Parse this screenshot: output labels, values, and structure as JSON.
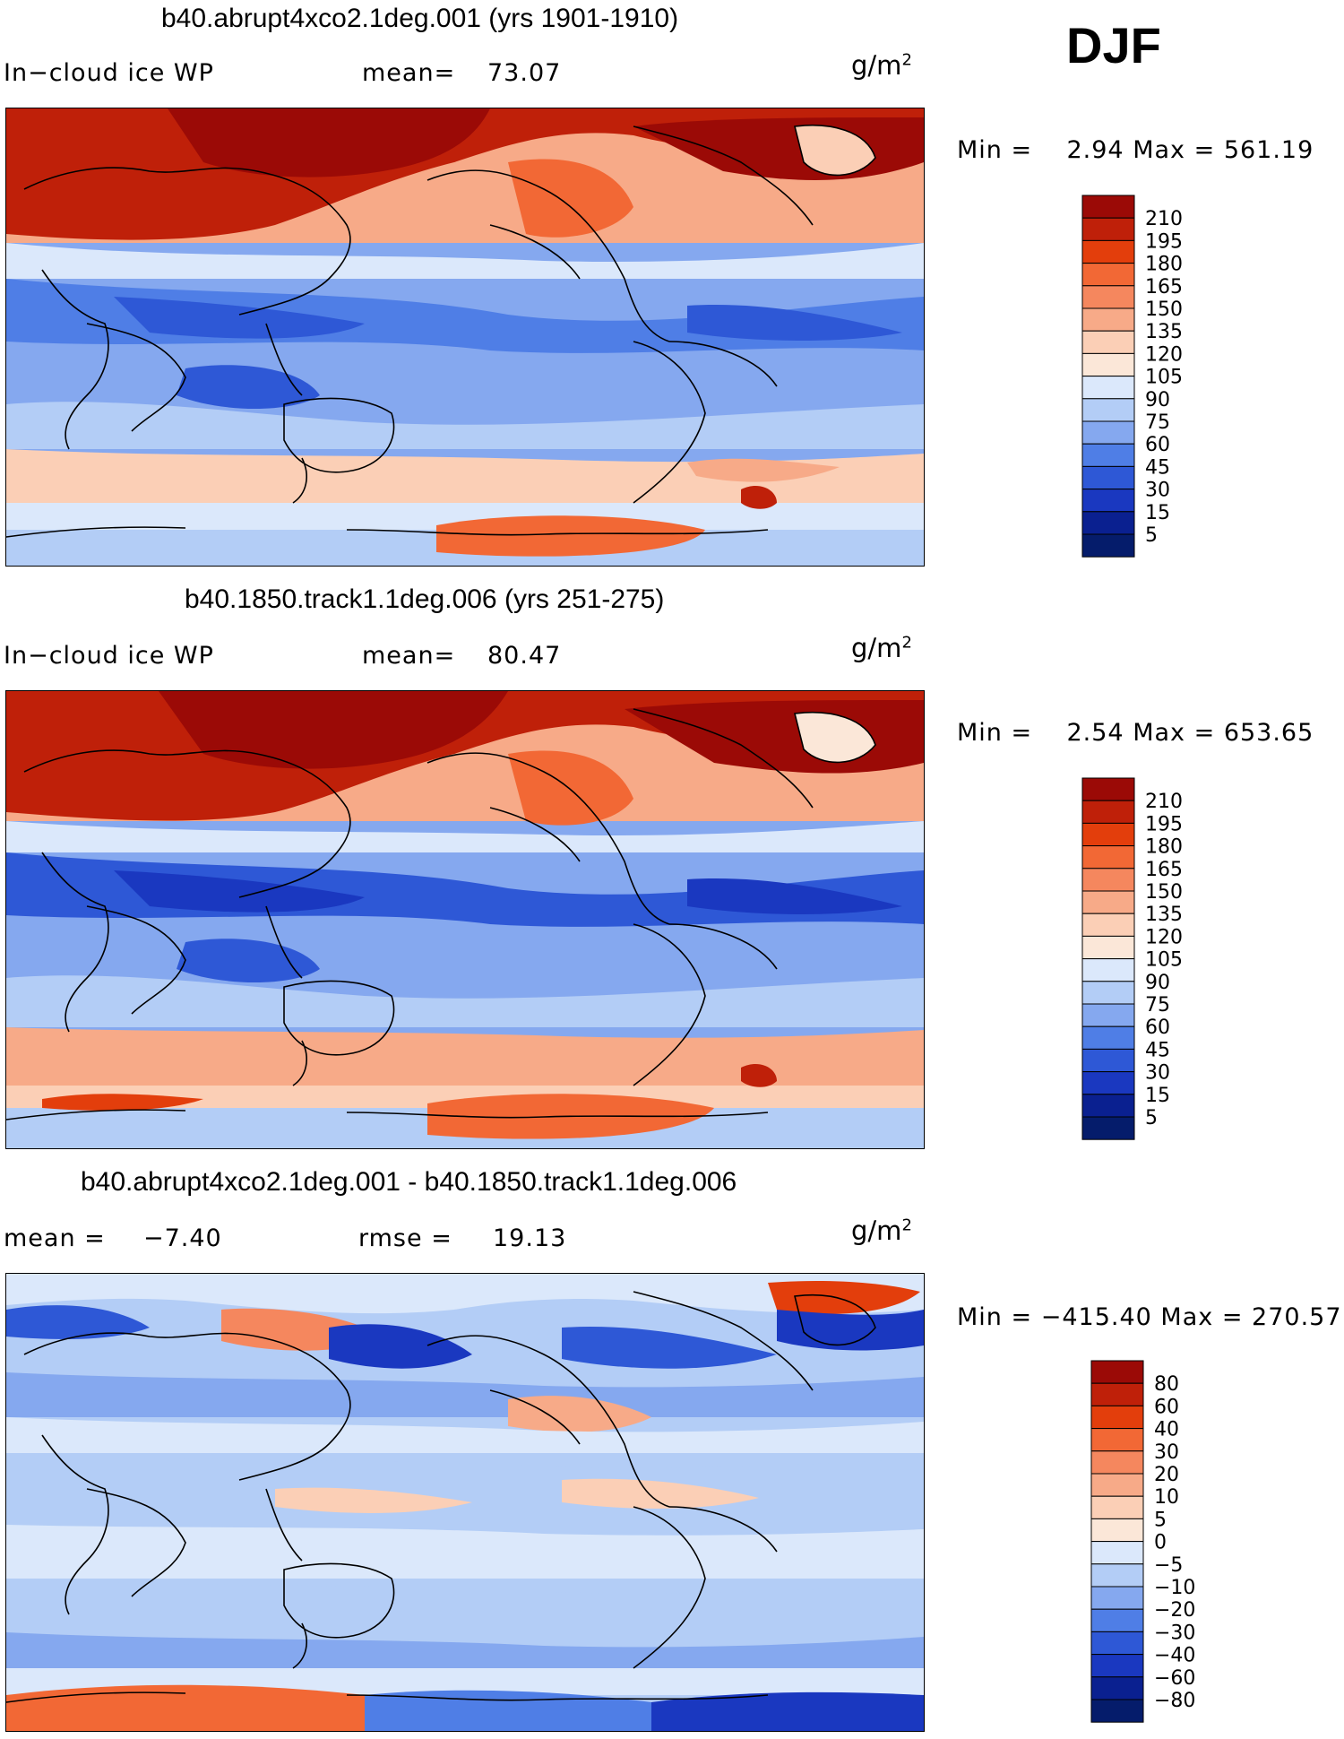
{
  "season": "DJF",
  "units": "g/m",
  "units_sup": "2",
  "panels": [
    {
      "title": "b40.abrupt4xco2.1deg.001 (yrs 1901-1910)",
      "left_label": "In−cloud ice WP",
      "stat_label": "mean=",
      "stat_value": "73.07",
      "min_label": "Min =",
      "min_value": "2.94",
      "max_label": "Max =",
      "max_value": "561.19",
      "colorbar_labels": [
        "210",
        "195",
        "180",
        "165",
        "150",
        "135",
        "120",
        "105",
        "90",
        "75",
        "60",
        "45",
        "30",
        "15",
        "5"
      ],
      "colorbar_colors": [
        "#9b0a06",
        "#bf2009",
        "#e33e0c",
        "#f26835",
        "#f5875e",
        "#f7aa88",
        "#fbcfb6",
        "#fbe7d8",
        "#dbe8fb",
        "#b3cdf6",
        "#85a8ef",
        "#4f7ee6",
        "#2e58d6",
        "#1a38c0",
        "#0a2090",
        "#051c6b"
      ]
    },
    {
      "title": "b40.1850.track1.1deg.006 (yrs 251-275)",
      "left_label": "In−cloud ice WP",
      "stat_label": "mean=",
      "stat_value": "80.47",
      "min_label": "Min =",
      "min_value": "2.54",
      "max_label": "Max =",
      "max_value": "653.65",
      "colorbar_labels": [
        "210",
        "195",
        "180",
        "165",
        "150",
        "135",
        "120",
        "105",
        "90",
        "75",
        "60",
        "45",
        "30",
        "15",
        "5"
      ],
      "colorbar_colors": [
        "#9b0a06",
        "#bf2009",
        "#e33e0c",
        "#f26835",
        "#f5875e",
        "#f7aa88",
        "#fbcfb6",
        "#fbe7d8",
        "#dbe8fb",
        "#b3cdf6",
        "#85a8ef",
        "#4f7ee6",
        "#2e58d6",
        "#1a38c0",
        "#0a2090",
        "#051c6b"
      ]
    },
    {
      "title": "b40.abrupt4xco2.1deg.001 - b40.1850.track1.1deg.006",
      "left_label": "mean =",
      "left_value": "−7.40",
      "stat_label": "rmse =",
      "stat_value": "19.13",
      "min_label": "Min =",
      "min_value": "−415.40",
      "max_label": "Max =",
      "max_value": "270.57",
      "colorbar_labels": [
        "80",
        "60",
        "40",
        "30",
        "20",
        "10",
        "5",
        "0",
        "−5",
        "−10",
        "−20",
        "−30",
        "−40",
        "−60",
        "−80"
      ],
      "colorbar_colors": [
        "#9b0a06",
        "#bf2009",
        "#e33e0c",
        "#f26835",
        "#f5875e",
        "#f7aa88",
        "#fbcfb6",
        "#fbe7d8",
        "#dbe8fb",
        "#b3cdf6",
        "#85a8ef",
        "#4f7ee6",
        "#2e58d6",
        "#1a38c0",
        "#0a2090",
        "#051c6b"
      ]
    }
  ]
}
